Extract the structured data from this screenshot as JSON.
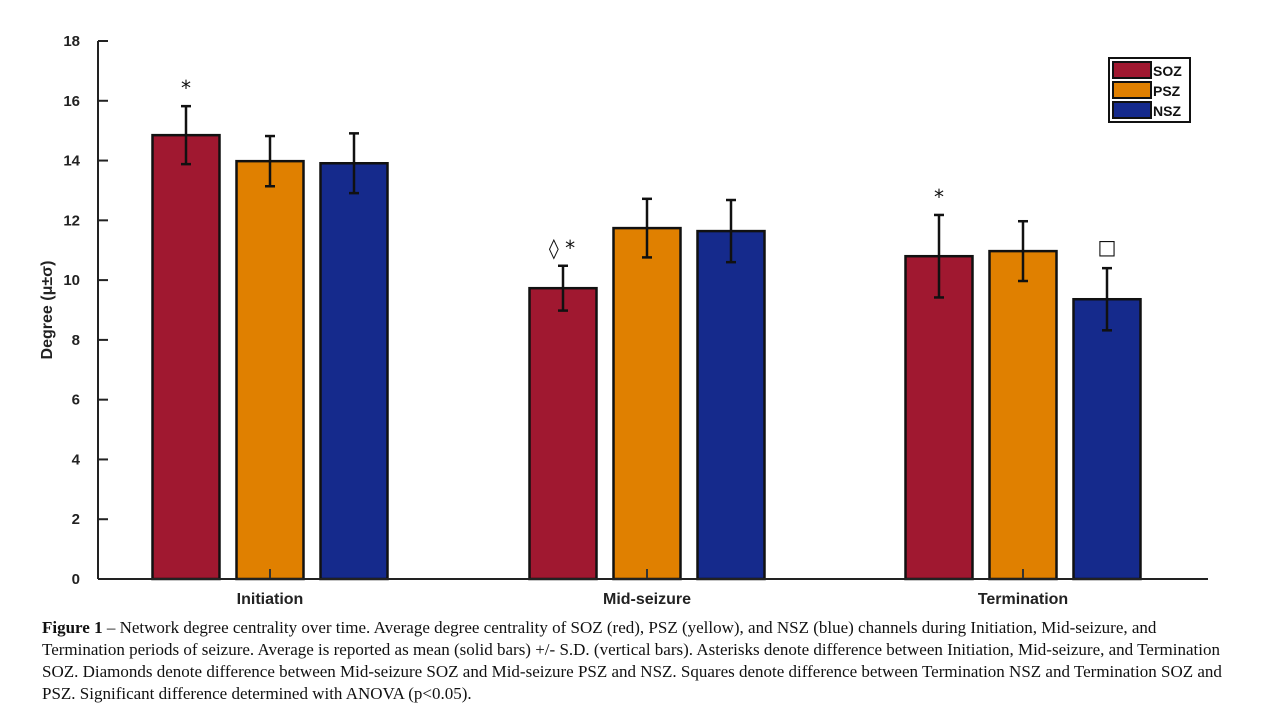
{
  "chart_data": {
    "type": "bar",
    "title": "",
    "xlabel": "",
    "ylabel": "Degree (μ±σ)",
    "ylim": [
      0,
      18
    ],
    "yticks": [
      0,
      2,
      4,
      6,
      8,
      10,
      12,
      14,
      16,
      18
    ],
    "categories": [
      "Initiation",
      "Mid-seizure",
      "Termination"
    ],
    "series": [
      {
        "name": "SOZ",
        "color": "#A01830",
        "values": [
          14.85,
          9.73,
          10.8
        ],
        "errors": [
          0.97,
          0.75,
          1.38
        ]
      },
      {
        "name": "PSZ",
        "color": "#E08000",
        "values": [
          13.98,
          11.74,
          10.97
        ],
        "errors": [
          0.84,
          0.98,
          1.0
        ]
      },
      {
        "name": "NSZ",
        "color": "#152A8C",
        "values": [
          13.91,
          11.64,
          9.36
        ],
        "errors": [
          1.0,
          1.04,
          1.04
        ]
      }
    ],
    "annotations": [
      {
        "category": "Initiation",
        "series": "SOZ",
        "symbols": "*"
      },
      {
        "category": "Mid-seizure",
        "series": "SOZ",
        "symbols": "◊  *"
      },
      {
        "category": "Termination",
        "series": "SOZ",
        "symbols": "*"
      },
      {
        "category": "Termination",
        "series": "NSZ",
        "symbols": "□"
      }
    ],
    "legend": {
      "position": "top-right",
      "entries": [
        "SOZ",
        "PSZ",
        "NSZ"
      ]
    },
    "grid": false
  },
  "caption": {
    "label": "Figure 1",
    "text": " – Network degree centrality over time. Average degree centrality of SOZ (red), PSZ (yellow), and NSZ (blue) channels during Initiation, Mid-seizure, and Termination periods of seizure. Average is reported as mean (solid bars) +/- S.D. (vertical bars). Asterisks denote difference between Initiation, Mid-seizure, and Termination SOZ. Diamonds denote difference between Mid-seizure SOZ and Mid-seizure PSZ and NSZ. Squares denote difference between Termination NSZ and Termination SOZ and PSZ. Significant difference determined with ANOVA (p<0.05)."
  }
}
